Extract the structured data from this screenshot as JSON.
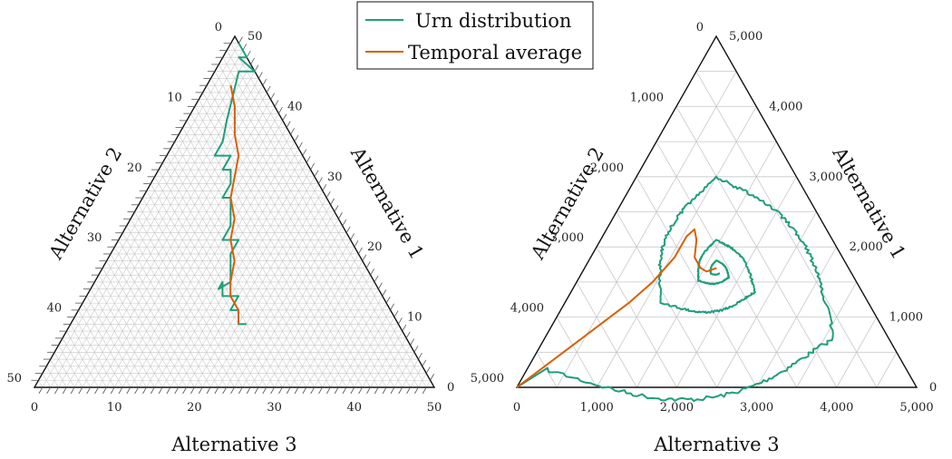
{
  "colors": {
    "urn": "#1f9e7a",
    "average": "#d95f02",
    "grid": "#c8c8c8",
    "axis": "#111111"
  },
  "legend": {
    "entries": [
      {
        "label": "Urn distribution",
        "color": "#1f9e7a"
      },
      {
        "label": "Temporal average",
        "color": "#d95f02"
      }
    ],
    "position": "top-center"
  },
  "chart_data": [
    {
      "type": "ternary-line",
      "max": 50,
      "axes": {
        "bottom": {
          "label": "Alternative 3",
          "ticks": [
            "0",
            "10",
            "20",
            "30",
            "40",
            "50"
          ]
        },
        "left": {
          "label": "Alternative 2",
          "ticks": [
            "0",
            "10",
            "20",
            "30",
            "40",
            "50"
          ]
        },
        "right": {
          "label": "Alternative 1",
          "ticks": [
            "0",
            "10",
            "20",
            "30",
            "40",
            "50"
          ]
        }
      },
      "grid": true,
      "series": [
        {
          "name": "Urn distribution",
          "points": [
            [
              49,
              0,
              1
            ],
            [
              47,
              0,
              3
            ],
            [
              47,
              1,
              2
            ],
            [
              45,
              0,
              5
            ],
            [
              45,
              2,
              3
            ],
            [
              38,
              7,
              5
            ],
            [
              35,
              9,
              6
            ],
            [
              33,
              11,
              6
            ],
            [
              33,
              9,
              8
            ],
            [
              31,
              11,
              8
            ],
            [
              31,
              10,
              9
            ],
            [
              29,
              11,
              10
            ],
            [
              27,
              13,
              10
            ],
            [
              27,
              12,
              11
            ],
            [
              25,
              13,
              12
            ],
            [
              23,
              14,
              13
            ],
            [
              21,
              16,
              13
            ],
            [
              21,
              15,
              14
            ],
            [
              21,
              14,
              15
            ],
            [
              19,
              16,
              15
            ],
            [
              17,
              17,
              16
            ],
            [
              15,
              18,
              17
            ],
            [
              14,
              20,
              16
            ],
            [
              15,
              19,
              16
            ],
            [
              13,
              20,
              17
            ],
            [
              13,
              19,
              18
            ],
            [
              13,
              18,
              19
            ],
            [
              11,
              20,
              19
            ],
            [
              11,
              19,
              20
            ],
            [
              9,
              20,
              21
            ],
            [
              9,
              19,
              22
            ]
          ]
        },
        {
          "name": "Temporal average",
          "points": [
            [
              43,
              4,
              3
            ],
            [
              40,
              5,
              5
            ],
            [
              36,
              7,
              7
            ],
            [
              33,
              8,
              9
            ],
            [
              30,
              10,
              10
            ],
            [
              27,
              12,
              11
            ],
            [
              24,
              13,
              13
            ],
            [
              21,
              15,
              14
            ],
            [
              18,
              16,
              16
            ],
            [
              15,
              18,
              17
            ],
            [
              13,
              19,
              18
            ],
            [
              11,
              19,
              20
            ],
            [
              9,
              20,
              21
            ]
          ]
        }
      ]
    },
    {
      "type": "ternary-line",
      "max": 5000,
      "axes": {
        "bottom": {
          "label": "Alternative 3",
          "ticks": [
            "0",
            "1,000",
            "2,000",
            "3,000",
            "4,000",
            "5,000"
          ]
        },
        "left": {
          "label": "Alternative 2",
          "ticks": [
            "0",
            "1,000",
            "2,000",
            "3,000",
            "4,000",
            "5,000"
          ]
        },
        "right": {
          "label": "Alternative 1",
          "ticks": [
            "0",
            "1,000",
            "2,000",
            "3,000",
            "4,000",
            "5,000"
          ]
        }
      },
      "grid": true,
      "series": [
        {
          "name": "Urn distribution",
          "spiral": {
            "center": [
              1667,
              1667,
              1666
            ],
            "start_radius": 3300,
            "end_radius": 80,
            "turns": 3.3,
            "start_angle_deg": 210,
            "jitter": 0.05
          }
        },
        {
          "name": "Temporal average",
          "points": [
            [
              0,
              5000,
              0
            ],
            [
              300,
              4500,
              200
            ],
            [
              600,
              4000,
              400
            ],
            [
              900,
              3500,
              600
            ],
            [
              1200,
              3000,
              800
            ],
            [
              1500,
              2550,
              950
            ],
            [
              1850,
              2100,
              1050
            ],
            [
              2150,
              1800,
              1050
            ],
            [
              2250,
              1650,
              1100
            ],
            [
              2100,
              1700,
              1200
            ],
            [
              1850,
              1850,
              1300
            ],
            [
              1700,
              1850,
              1450
            ],
            [
              1650,
              1800,
              1550
            ],
            [
              1700,
              1650,
              1650
            ]
          ]
        }
      ]
    }
  ]
}
